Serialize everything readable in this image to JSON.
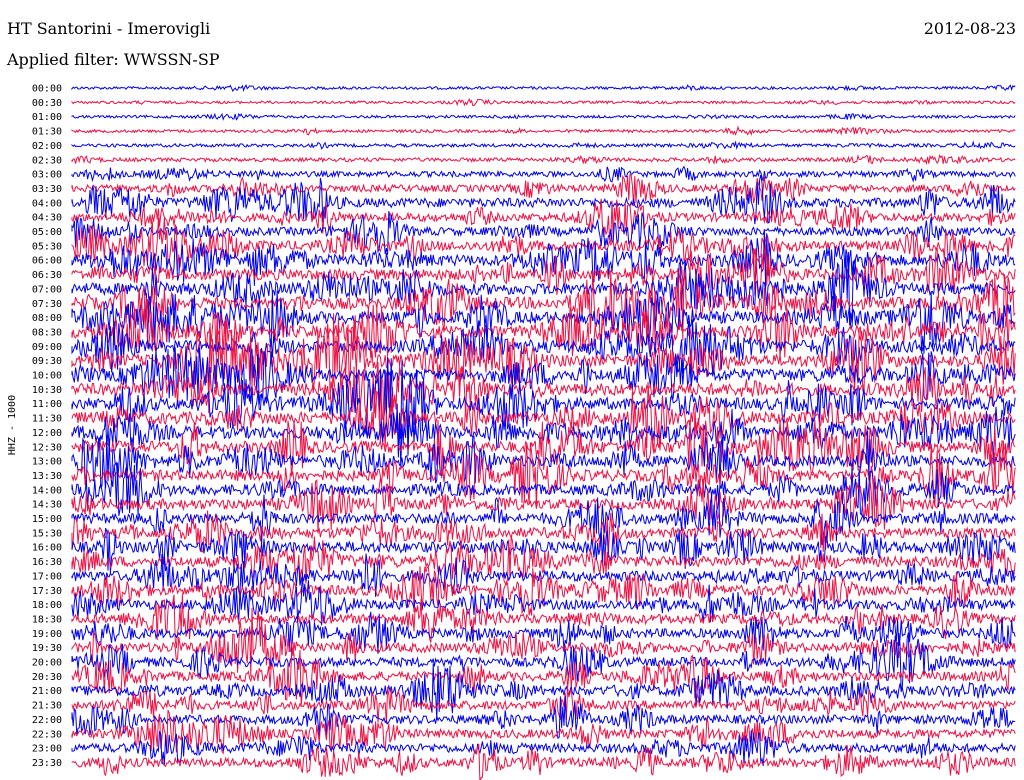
{
  "header": {
    "station": "HT Santorini - Imerovigli",
    "date": "2012-08-23",
    "filter": "Applied filter: WWSSN-SP"
  },
  "chart_data": {
    "type": "line",
    "title": "HT Santorini - Imerovigli",
    "subtitle": "Applied filter: WWSSN-SP",
    "date": "2012-08-23",
    "ylabel": "HHZ - 1000",
    "xlabel": "",
    "row_times": [
      "00:00",
      "00:30",
      "01:00",
      "01:30",
      "02:00",
      "02:30",
      "03:00",
      "03:30",
      "04:00",
      "04:30",
      "05:00",
      "05:30",
      "06:00",
      "06:30",
      "07:00",
      "07:30",
      "08:00",
      "08:30",
      "09:00",
      "09:30",
      "10:00",
      "10:30",
      "11:00",
      "11:30",
      "12:00",
      "12:30",
      "13:00",
      "13:30",
      "14:00",
      "14:30",
      "15:00",
      "15:30",
      "16:00",
      "16:30",
      "17:00",
      "17:30",
      "18:00",
      "18:30",
      "19:00",
      "19:30",
      "20:00",
      "20:30",
      "21:00",
      "21:30",
      "22:00",
      "22:30",
      "23:00",
      "23:30"
    ],
    "row_minutes": 30,
    "activity_level": [
      0.1,
      0.1,
      0.1,
      0.12,
      0.15,
      0.2,
      0.35,
      0.5,
      0.7,
      0.6,
      0.6,
      0.75,
      0.85,
      0.85,
      0.9,
      0.95,
      0.95,
      0.95,
      0.95,
      0.95,
      0.95,
      0.95,
      0.95,
      0.95,
      0.95,
      0.9,
      0.85,
      0.85,
      0.8,
      0.8,
      0.8,
      0.8,
      0.85,
      0.8,
      0.8,
      0.75,
      0.75,
      0.75,
      0.7,
      0.7,
      0.7,
      0.7,
      0.7,
      0.65,
      0.65,
      0.65,
      0.65,
      0.65
    ],
    "colors": [
      "#0000ee",
      "#ee1144"
    ],
    "grid": false
  }
}
